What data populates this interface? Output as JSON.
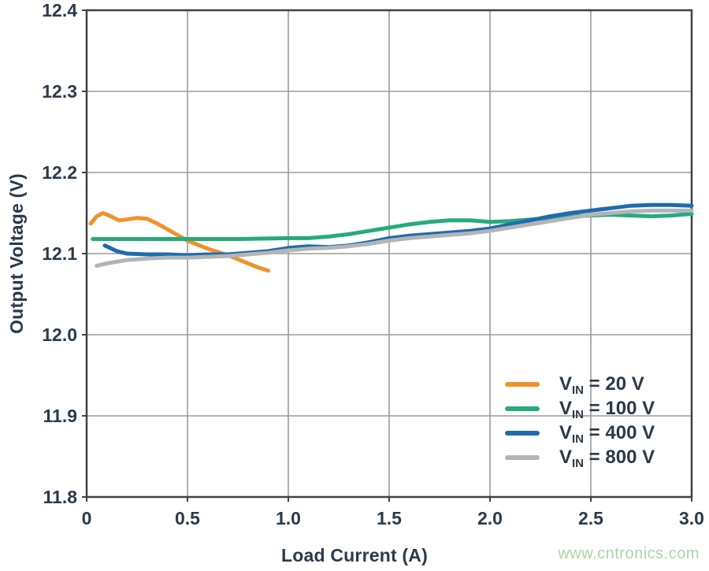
{
  "chart_data": {
    "type": "line",
    "title": "",
    "xlabel": "Load Current (A)",
    "ylabel": "Output Voltage (V)",
    "xlim": [
      0,
      3.0
    ],
    "ylim": [
      11.8,
      12.4
    ],
    "grid": true,
    "legend_position": "inside-lower-right",
    "x_ticks": {
      "values": [
        0,
        0.5,
        1.0,
        1.5,
        2.0,
        2.5,
        3.0
      ],
      "labels": [
        "0",
        "0.5",
        "1.0",
        "1.5",
        "2.0",
        "2.5",
        "3.0"
      ]
    },
    "y_ticks": {
      "values": [
        11.8,
        11.9,
        12.0,
        12.1,
        12.2,
        12.3,
        12.4
      ],
      "labels": [
        "11.8",
        "11.9",
        "12.0",
        "12.1",
        "12.2",
        "12.3",
        "12.4"
      ]
    },
    "series": [
      {
        "name": "VIN = 20 V",
        "slug": "vin-20v",
        "color": "#F0922B",
        "legend": {
          "main": "V",
          "sub": "IN",
          "rest": " = 20 V"
        },
        "points": [
          [
            0.02,
            12.137
          ],
          [
            0.05,
            12.146
          ],
          [
            0.08,
            12.15
          ],
          [
            0.12,
            12.146
          ],
          [
            0.16,
            12.141
          ],
          [
            0.2,
            12.142
          ],
          [
            0.25,
            12.144
          ],
          [
            0.3,
            12.143
          ],
          [
            0.35,
            12.137
          ],
          [
            0.4,
            12.13
          ],
          [
            0.45,
            12.123
          ],
          [
            0.5,
            12.116
          ],
          [
            0.55,
            12.111
          ],
          [
            0.6,
            12.106
          ],
          [
            0.65,
            12.102
          ],
          [
            0.7,
            12.098
          ],
          [
            0.75,
            12.093
          ],
          [
            0.8,
            12.088
          ],
          [
            0.85,
            12.083
          ],
          [
            0.9,
            12.079
          ]
        ]
      },
      {
        "name": "VIN = 100 V",
        "slug": "vin-100v",
        "color": "#27AA7D",
        "legend": {
          "main": "V",
          "sub": "IN",
          "rest": " = 100 V"
        },
        "points": [
          [
            0.03,
            12.118
          ],
          [
            0.25,
            12.118
          ],
          [
            0.5,
            12.118
          ],
          [
            0.75,
            12.118
          ],
          [
            1.0,
            12.119
          ],
          [
            1.1,
            12.119
          ],
          [
            1.2,
            12.121
          ],
          [
            1.3,
            12.124
          ],
          [
            1.4,
            12.128
          ],
          [
            1.5,
            12.132
          ],
          [
            1.6,
            12.136
          ],
          [
            1.7,
            12.139
          ],
          [
            1.8,
            12.141
          ],
          [
            1.9,
            12.141
          ],
          [
            2.0,
            12.139
          ],
          [
            2.1,
            12.14
          ],
          [
            2.2,
            12.142
          ],
          [
            2.3,
            12.144
          ],
          [
            2.4,
            12.146
          ],
          [
            2.5,
            12.147
          ],
          [
            2.6,
            12.148
          ],
          [
            2.7,
            12.147
          ],
          [
            2.8,
            12.146
          ],
          [
            2.9,
            12.147
          ],
          [
            3.0,
            12.149
          ]
        ]
      },
      {
        "name": "VIN = 400 V",
        "slug": "vin-400v",
        "color": "#1E6BAE",
        "legend": {
          "main": "V",
          "sub": "IN",
          "rest": " = 400 V"
        },
        "points": [
          [
            0.09,
            12.11
          ],
          [
            0.15,
            12.103
          ],
          [
            0.2,
            12.1
          ],
          [
            0.3,
            12.099
          ],
          [
            0.4,
            12.099
          ],
          [
            0.5,
            12.098
          ],
          [
            0.6,
            12.099
          ],
          [
            0.7,
            12.099
          ],
          [
            0.8,
            12.101
          ],
          [
            0.9,
            12.103
          ],
          [
            1.0,
            12.107
          ],
          [
            1.1,
            12.109
          ],
          [
            1.2,
            12.108
          ],
          [
            1.3,
            12.11
          ],
          [
            1.4,
            12.114
          ],
          [
            1.5,
            12.119
          ],
          [
            1.6,
            12.122
          ],
          [
            1.7,
            12.124
          ],
          [
            1.8,
            12.126
          ],
          [
            1.9,
            12.128
          ],
          [
            2.0,
            12.131
          ],
          [
            2.1,
            12.136
          ],
          [
            2.2,
            12.141
          ],
          [
            2.3,
            12.146
          ],
          [
            2.4,
            12.15
          ],
          [
            2.5,
            12.153
          ],
          [
            2.6,
            12.156
          ],
          [
            2.7,
            12.159
          ],
          [
            2.8,
            12.16
          ],
          [
            2.9,
            12.16
          ],
          [
            3.0,
            12.159
          ]
        ]
      },
      {
        "name": "VIN = 800 V",
        "slug": "vin-800v",
        "color": "#B3B4B6",
        "legend": {
          "main": "V",
          "sub": "IN",
          "rest": " = 800 V"
        },
        "points": [
          [
            0.05,
            12.085
          ],
          [
            0.1,
            12.088
          ],
          [
            0.2,
            12.092
          ],
          [
            0.3,
            12.094
          ],
          [
            0.4,
            12.095
          ],
          [
            0.5,
            12.095
          ],
          [
            0.6,
            12.096
          ],
          [
            0.7,
            12.097
          ],
          [
            0.8,
            12.099
          ],
          [
            0.9,
            12.101
          ],
          [
            1.0,
            12.104
          ],
          [
            1.1,
            12.106
          ],
          [
            1.2,
            12.107
          ],
          [
            1.3,
            12.109
          ],
          [
            1.4,
            12.112
          ],
          [
            1.5,
            12.116
          ],
          [
            1.6,
            12.119
          ],
          [
            1.7,
            12.121
          ],
          [
            1.8,
            12.123
          ],
          [
            1.9,
            12.125
          ],
          [
            2.0,
            12.128
          ],
          [
            2.1,
            12.132
          ],
          [
            2.2,
            12.136
          ],
          [
            2.3,
            12.14
          ],
          [
            2.4,
            12.144
          ],
          [
            2.5,
            12.148
          ],
          [
            2.6,
            12.15
          ],
          [
            2.7,
            12.152
          ],
          [
            2.8,
            12.153
          ],
          [
            2.9,
            12.153
          ],
          [
            3.0,
            12.153
          ]
        ]
      }
    ]
  },
  "watermark": {
    "text": "www.cntronics.com",
    "color": "#A6D8A6"
  },
  "colors": {
    "text": "#2B3A4A",
    "grid": "#9B9B9B",
    "frame": "#3E4347",
    "background": "#FFFFFF"
  }
}
